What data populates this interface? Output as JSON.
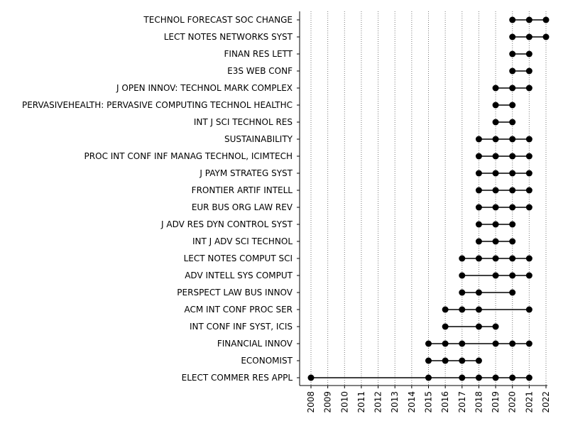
{
  "chart_data": {
    "type": "scatter",
    "subtype": "dot-range",
    "title": "",
    "xlabel": "",
    "ylabel": "",
    "xlim": [
      2008,
      2022
    ],
    "x_ticks": [
      "2008",
      "2009",
      "2010",
      "2011",
      "2012",
      "2013",
      "2014",
      "2015",
      "2016",
      "2017",
      "2018",
      "2019",
      "2020",
      "2021",
      "2022"
    ],
    "grid": "vertical dotted",
    "marker_color": "#000000",
    "rows": [
      {
        "label": "TECHNOL FORECAST SOC CHANGE",
        "years": [
          2020,
          2021,
          2022
        ]
      },
      {
        "label": "LECT NOTES NETWORKS SYST",
        "years": [
          2020,
          2021,
          2022
        ]
      },
      {
        "label": "FINAN RES LETT",
        "years": [
          2020,
          2021
        ]
      },
      {
        "label": "E3S WEB CONF",
        "years": [
          2020,
          2021
        ]
      },
      {
        "label": "J OPEN INNOV: TECHNOL MARK COMPLEX",
        "years": [
          2019,
          2020,
          2021
        ]
      },
      {
        "label": "PERVASIVEHEALTH: PERVASIVE COMPUTING TECHNOL HEALTHC",
        "years": [
          2019,
          2020
        ]
      },
      {
        "label": "INT J SCI TECHNOL RES",
        "years": [
          2019,
          2020
        ]
      },
      {
        "label": "SUSTAINABILITY",
        "years": [
          2018,
          2019,
          2020,
          2021
        ]
      },
      {
        "label": "PROC INT CONF INF MANAG TECHNOL, ICIMTECH",
        "years": [
          2018,
          2019,
          2020,
          2021
        ]
      },
      {
        "label": "J PAYM STRATEG SYST",
        "years": [
          2018,
          2019,
          2020,
          2021
        ]
      },
      {
        "label": "FRONTIER ARTIF INTELL",
        "years": [
          2018,
          2019,
          2020,
          2021
        ]
      },
      {
        "label": "EUR BUS ORG LAW REV",
        "years": [
          2018,
          2019,
          2020,
          2021
        ]
      },
      {
        "label": "J ADV RES DYN CONTROL SYST",
        "years": [
          2018,
          2019,
          2020
        ]
      },
      {
        "label": "INT J ADV SCI TECHNOL",
        "years": [
          2018,
          2019,
          2020
        ]
      },
      {
        "label": "LECT NOTES COMPUT SCI",
        "years": [
          2017,
          2018,
          2019,
          2020,
          2021
        ]
      },
      {
        "label": "ADV INTELL SYS COMPUT",
        "years": [
          2017,
          2019,
          2020,
          2021
        ]
      },
      {
        "label": "PERSPECT LAW BUS INNOV",
        "years": [
          2017,
          2018,
          2020
        ]
      },
      {
        "label": "ACM INT CONF PROC SER",
        "years": [
          2016,
          2017,
          2018,
          2021
        ]
      },
      {
        "label": "INT CONF INF SYST, ICIS",
        "years": [
          2016,
          2018,
          2019
        ]
      },
      {
        "label": "FINANCIAL INNOV",
        "years": [
          2015,
          2016,
          2017,
          2019,
          2020,
          2021
        ]
      },
      {
        "label": "ECONOMIST",
        "years": [
          2015,
          2016,
          2017,
          2018
        ]
      },
      {
        "label": "ELECT COMMER RES APPL",
        "years": [
          2008,
          2015,
          2017,
          2018,
          2019,
          2020,
          2021
        ]
      }
    ]
  }
}
